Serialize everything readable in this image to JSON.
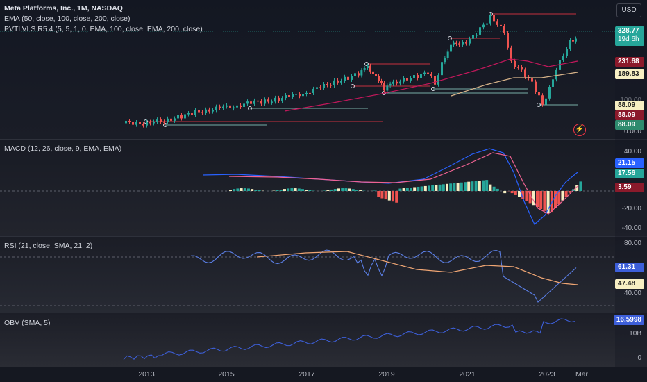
{
  "main": {
    "symbol_title": "Meta Platforms, Inc., 1M, NASDAQ",
    "ema_title": "EMA (50, close, 100, close, 200, close)",
    "pvt_title": "PVTLVLS R5.4 (5, 5, 1, 0, EMA, 100, close, EMA, 200, close)",
    "currency_button": "USD",
    "price_tag": "328.77",
    "countdown": "19d 6h",
    "ema_tag_1": "231.68",
    "ema_tag_2": "189.83",
    "ema_tag_3": "88.09",
    "ema_tag_4": "88.09",
    "ema_tag_5": "88.09",
    "axis_zero": "0.000",
    "axis_partial": "100.00",
    "colors": {
      "up": "#26a69a",
      "down": "#ef5350",
      "ema50": "#c2185b",
      "ema100": "#9c1c2c",
      "ema200": "#d8b48a"
    }
  },
  "macd": {
    "title": "MACD (12, 26, close, 9, EMA, EMA)",
    "ticks": [
      "40.00",
      "-20.00",
      "-40.00"
    ],
    "tag_macd": "21.15",
    "tag_hist": "17.56",
    "tag_signal": "3.59",
    "colors": {
      "macd": "#2962ff",
      "signal": "#f06292",
      "hist_up": "#26a69a",
      "hist_down": "#ef5350",
      "hist_light": "#f7efc3"
    }
  },
  "rsi": {
    "title": "RSI (21, close, SMA, 21, 2)",
    "ticks": [
      "80.00",
      "40.00"
    ],
    "tag_rsi": "61.31",
    "tag_sma": "47.48",
    "colors": {
      "rsi": "#5b7fe6",
      "sma": "#f0a674"
    }
  },
  "obv": {
    "title": "OBV (SMA, 5)",
    "ticks": [
      "10B",
      "0"
    ],
    "tag": "16.5998",
    "colors": {
      "obv": "#3d5fd9"
    }
  },
  "xaxis": {
    "labels": [
      "2013",
      "2015",
      "2017",
      "2019",
      "2021",
      "2023",
      "Mar"
    ]
  }
}
